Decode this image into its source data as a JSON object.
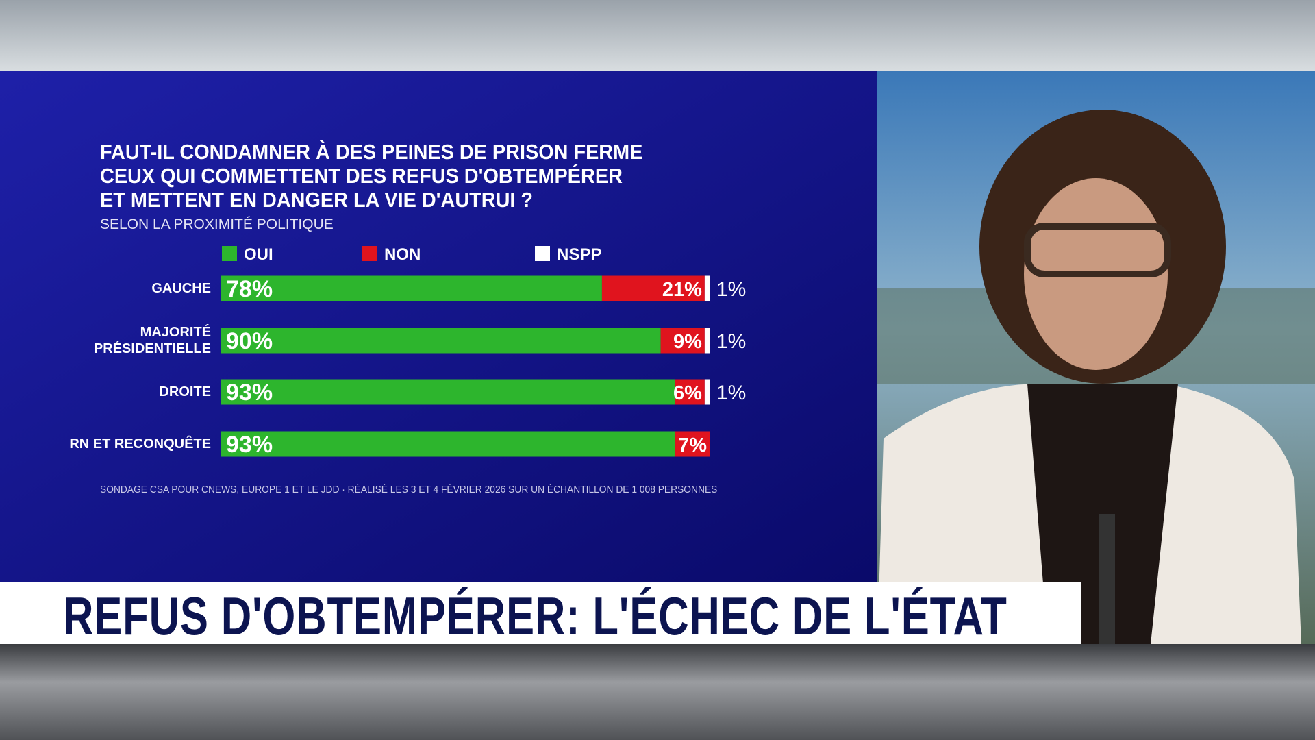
{
  "chart_data": {
    "type": "stacked-bar-horizontal",
    "title": "FAUT-IL CONDAMNER À DES PEINES DE PRISON FERME\nCEUX QUI COMMETTENT DES REFUS D'OBTEMPÉRER\nET METTENT EN DANGER LA VIE D'AUTRUI ?",
    "subtitle": "SELON LA PROXIMITÉ POLITIQUE",
    "categories": [
      "GAUCHE",
      "MAJORITÉ\nPRÉSIDENTIELLE",
      "DROITE",
      "RN ET RECONQUÊTE"
    ],
    "series": [
      {
        "name": "OUI",
        "color": "#2db52d",
        "values": [
          78,
          90,
          93,
          93
        ],
        "value_labels": [
          "78%",
          "90%",
          "93%",
          "93%"
        ]
      },
      {
        "name": "NON",
        "color": "#e0141e",
        "values": [
          21,
          9,
          6,
          7
        ],
        "value_labels": [
          "21%",
          "9%",
          "6%",
          "7%"
        ]
      },
      {
        "name": "NSPP",
        "color": "#ffffff",
        "values": [
          1,
          1,
          1,
          null
        ],
        "value_labels": [
          "1%",
          "1%",
          "1%",
          null
        ]
      }
    ],
    "source": "SONDAGE CSA POUR CNEWS, EUROPE 1 ET LE JDD · RÉALISÉ LES 3 ET 4 FÉVRIER 2026 SUR UN ÉCHANTILLON DE 1 008 PERSONNES"
  },
  "banner": {
    "headline": "REFUS D'OBTEMPÉRER: L'ÉCHEC DE L'ÉTAT"
  }
}
